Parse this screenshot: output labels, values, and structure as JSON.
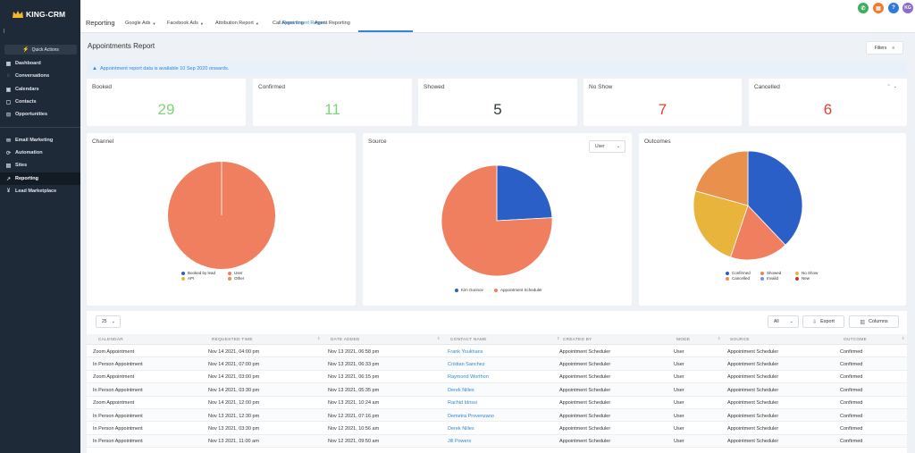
{
  "app": {
    "logo_text": "KING-CRM"
  },
  "sidebar": {
    "quick_actions": "Quick Actions",
    "items": [
      {
        "label": "Dashboard",
        "icon": "dashboard-icon",
        "active": false
      },
      {
        "label": "Conversations",
        "icon": "chat-icon",
        "active": false
      },
      {
        "label": "Calendars",
        "icon": "calendar-icon",
        "active": false
      },
      {
        "label": "Contacts",
        "icon": "contacts-icon",
        "active": false
      },
      {
        "label": "Opportunities",
        "icon": "funnel-icon",
        "active": false
      },
      {
        "label": "Email Marketing",
        "icon": "email-icon",
        "active": false
      },
      {
        "label": "Automation",
        "icon": "automation-icon",
        "active": false
      },
      {
        "label": "Sites",
        "icon": "sites-icon",
        "active": false
      },
      {
        "label": "Reporting",
        "icon": "chart-icon",
        "active": true
      },
      {
        "label": "Lead Marketplace",
        "icon": "marketplace-icon",
        "active": false
      }
    ]
  },
  "header": {
    "title": "Reporting",
    "tabs": [
      {
        "label": "Google Ads",
        "dropdown": true
      },
      {
        "label": "Facebook Ads",
        "dropdown": true
      },
      {
        "label": "Attribution Report",
        "dropdown": true
      },
      {
        "label": "Call Reporting",
        "dropdown": false
      },
      {
        "label": "Agent Reporting",
        "dropdown": false
      },
      {
        "label": "Appointment Report",
        "dropdown": false,
        "active": true
      }
    ],
    "avatar_initials": "KG",
    "icon_colors": {
      "phone": "#3fae5a",
      "news": "#f07a2e",
      "help": "#2f7ad8",
      "avatar": "#8b6cc7"
    }
  },
  "page": {
    "title": "Appointments Report",
    "filters_label": "Filters",
    "info": "Appointment report data is available 10 Sep 2020 onwards."
  },
  "stats": [
    {
      "label": "Booked",
      "value": "29",
      "color": "#7ed37a"
    },
    {
      "label": "Confirmed",
      "value": "11",
      "color": "#7ed37a"
    },
    {
      "label": "Showed",
      "value": "5",
      "color": "#2f3d33"
    },
    {
      "label": "No Show",
      "value": "7",
      "color": "#e0412e"
    },
    {
      "label": "Cancelled",
      "value": "6",
      "color": "#e0412e"
    }
  ],
  "chart_data": [
    {
      "type": "pie",
      "title": "Channel",
      "categories": [
        "Booked by lead",
        "User",
        "API",
        "Other"
      ],
      "values": [
        0,
        29,
        0,
        0
      ],
      "colors": [
        "#2b5fc8",
        "#ef7f5e",
        "#e9b43c",
        "#e9904d"
      ]
    },
    {
      "type": "pie",
      "title": "Source",
      "selector": "User",
      "categories": [
        "Kim Gurinov",
        "Appointment Scheduler"
      ],
      "values": [
        7,
        22
      ],
      "colors": [
        "#2b5fc8",
        "#ef7f5e"
      ]
    },
    {
      "type": "pie",
      "title": "Outcomes",
      "categories": [
        "Confirmed",
        "Showed",
        "No Show",
        "Cancelled",
        "Invalid",
        "New"
      ],
      "values": [
        11,
        5,
        7,
        6,
        0,
        0
      ],
      "colors": [
        "#2b5fc8",
        "#ef7f5e",
        "#e9b43c",
        "#e9904d",
        "#6f94e8",
        "#c0392b"
      ]
    }
  ],
  "table": {
    "page_size": "25",
    "filter_value": "All",
    "export_label": "Export",
    "columns_label": "Columns",
    "headers": [
      "Calendar",
      "Requested Time",
      "Date Added",
      "Contact Name",
      "Created By",
      "Mode",
      "Source",
      "Outcome"
    ],
    "rows": [
      [
        "Zoom Appointment",
        "Nov 14 2021, 04:00 pm",
        "Nov 13 2021, 06:58 pm",
        "Frank Youkhans",
        "Appointment Scheduler",
        "User",
        "Appointment Scheduler",
        "Confirmed"
      ],
      [
        "In Person Appointment",
        "Nov 14 2021, 07:00 pm",
        "Nov 13 2021, 06:33 pm",
        "Cristian Sanchez",
        "Appointment Scheduler",
        "User",
        "Appointment Scheduler",
        "Confirmed"
      ],
      [
        "Zoom Appointment",
        "Nov 14 2021, 03:00 pm",
        "Nov 13 2021, 06:15 pm",
        "Raymond Worthon",
        "Appointment Scheduler",
        "User",
        "Appointment Scheduler",
        "Confirmed"
      ],
      [
        "In Person Appointment",
        "Nov 14 2021, 03:30 pm",
        "Nov 13 2021, 05:35 pm",
        "Derek Nilles",
        "Appointment Scheduler",
        "User",
        "Appointment Scheduler",
        "Confirmed"
      ],
      [
        "Zoom Appointment",
        "Nov 14 2021, 12:00 pm",
        "Nov 13 2021, 10:24 am",
        "Rachid Idrissi",
        "Appointment Scheduler",
        "User",
        "Appointment Scheduler",
        "Confirmed"
      ],
      [
        "In Person Appointment",
        "Nov 13 2021, 12:30 pm",
        "Nov 12 2021, 07:16 pm",
        "Demetra Provenzano",
        "Appointment Scheduler",
        "User",
        "Appointment Scheduler",
        "Confirmed"
      ],
      [
        "In Person Appointment",
        "Nov 13 2021, 03:30 pm",
        "Nov 12 2021, 10:56 am",
        "Derek Nilles",
        "Appointment Scheduler",
        "User",
        "Appointment Scheduler",
        "Confirmed"
      ],
      [
        "In Person Appointment",
        "Nov 13 2021, 11:00 am",
        "Nov 12 2021, 09:50 am",
        "Jill Powers",
        "Appointment Scheduler",
        "User",
        "Appointment Scheduler",
        "Confirmed"
      ]
    ]
  }
}
